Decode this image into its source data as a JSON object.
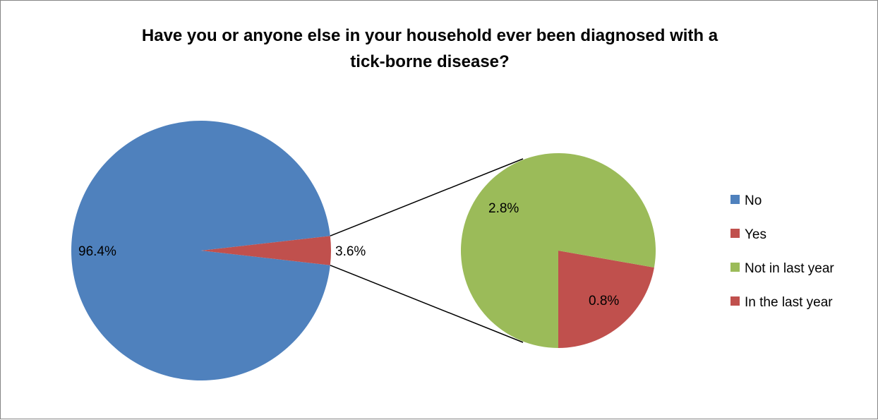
{
  "chart_data": {
    "type": "pie",
    "subtype": "pie-of-pie",
    "title": "Have you or anyone else in your household ever been diagnosed with a tick-borne disease?",
    "primary": {
      "slices": [
        {
          "label": "No",
          "value": 96.4,
          "display": "96.4%",
          "color": "#4F81BD"
        },
        {
          "label": "Yes",
          "value": 3.6,
          "display": "3.6%",
          "color": "#C0504D"
        }
      ]
    },
    "secondary": {
      "breakdown_of": "Yes",
      "slices": [
        {
          "label": "In the last year",
          "value": 0.8,
          "display": "0.8%",
          "color": "#C0504D"
        },
        {
          "label": "Not in last year",
          "value": 2.8,
          "display": "2.8%",
          "color": "#9BBB59"
        }
      ]
    },
    "legend": {
      "position": "right",
      "entries": [
        {
          "label": "No",
          "color": "#4F81BD"
        },
        {
          "label": "Yes",
          "color": "#C0504D"
        },
        {
          "label": "Not in last year",
          "color": "#9BBB59"
        },
        {
          "label": "In the last year",
          "color": "#C0504D"
        }
      ]
    }
  }
}
